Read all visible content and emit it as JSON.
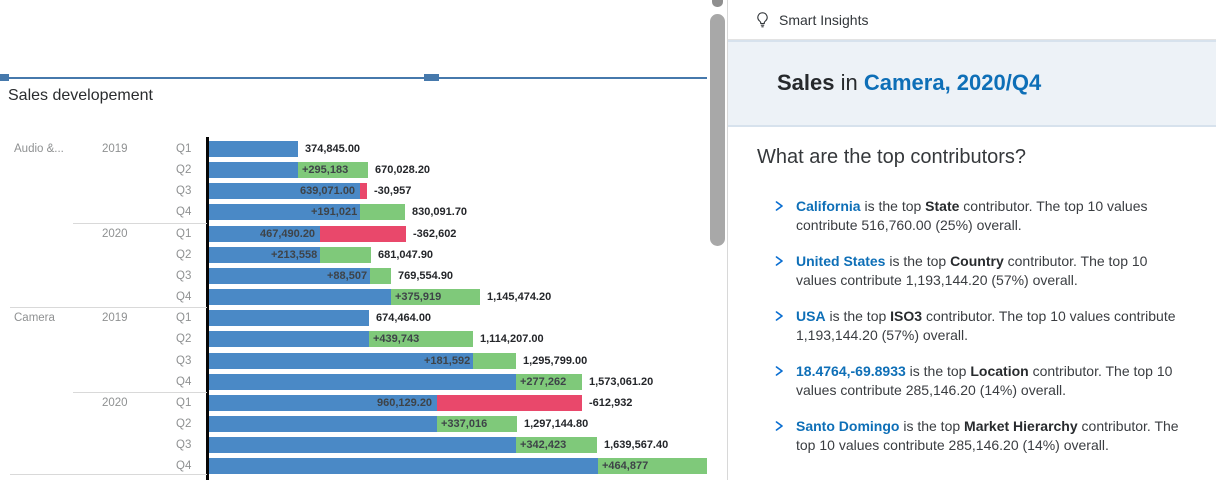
{
  "colors": {
    "bar_blue": "#4A89C6",
    "delta_increase_green": "#7FC97A",
    "delta_decrease_red": "#E9486B",
    "selection_border_blue": "#4679AC",
    "accent_blue": "#0E6FB7",
    "link_blue": "#0A6ED1",
    "context_bar_bg": "#EDF2F7"
  },
  "icons": {
    "panel_header": "lightbulb-icon",
    "item_expand": "chevron-right-icon"
  },
  "chart_data": {
    "type": "bar",
    "subtype": "waterfall-development",
    "orientation": "horizontal",
    "title": "Sales developement",
    "measure": "Sales",
    "legend": "none",
    "grid": false,
    "partial_next_separator": true,
    "rows": [
      {
        "category": "Audio &...",
        "year": "2019",
        "quarter": "Q1",
        "total": 374845.0,
        "delta": null,
        "direction": "none",
        "separator": null,
        "labels": {
          "outside": "374,845.00"
        }
      },
      {
        "quarter": "Q2",
        "total": 670028.2,
        "delta": 295183,
        "direction": "up",
        "separator": null,
        "labels": {
          "delta": "+295,183",
          "outside": "670,028.20"
        }
      },
      {
        "quarter": "Q3",
        "total": 639071.0,
        "delta": -30957,
        "direction": "down",
        "separator": null,
        "labels": {
          "inside": "639,071.00",
          "outside": "-30,957"
        }
      },
      {
        "quarter": "Q4",
        "total": 830091.7,
        "delta": 191021,
        "direction": "up",
        "separator": null,
        "labels": {
          "delta": "+191,021",
          "outside": "830,091.70"
        }
      },
      {
        "year": "2020",
        "quarter": "Q1",
        "total": 467490.2,
        "delta": -362602,
        "direction": "down",
        "separator": "year",
        "labels": {
          "inside": "467,490.20",
          "outside": "-362,602"
        }
      },
      {
        "quarter": "Q2",
        "total": 681047.9,
        "delta": 213558,
        "direction": "up",
        "separator": null,
        "labels": {
          "delta": "+213,558",
          "outside": "681,047.90"
        }
      },
      {
        "quarter": "Q3",
        "total": 769554.9,
        "delta": 88507,
        "direction": "up",
        "separator": null,
        "labels": {
          "delta": "+88,507",
          "outside": "769,554.90"
        }
      },
      {
        "quarter": "Q4",
        "total": 1145474.2,
        "delta": 375919,
        "direction": "up",
        "separator": null,
        "labels": {
          "delta": "+375,919",
          "outside": "1,145,474.20"
        }
      },
      {
        "category": "Camera",
        "year": "2019",
        "quarter": "Q1",
        "total": 674464.0,
        "delta": null,
        "direction": "none",
        "separator": "category",
        "labels": {
          "outside": "674,464.00"
        }
      },
      {
        "quarter": "Q2",
        "total": 1114207.0,
        "delta": 439743,
        "direction": "up",
        "separator": null,
        "labels": {
          "delta": "+439,743",
          "outside": "1,114,207.00"
        }
      },
      {
        "quarter": "Q3",
        "total": 1295799.0,
        "delta": 181592,
        "direction": "up",
        "separator": null,
        "labels": {
          "delta": "+181,592",
          "outside": "1,295,799.00"
        }
      },
      {
        "quarter": "Q4",
        "total": 1573061.2,
        "delta": 277262,
        "direction": "up",
        "separator": null,
        "labels": {
          "delta": "+277,262",
          "outside": "1,573,061.20"
        }
      },
      {
        "year": "2020",
        "quarter": "Q1",
        "total": 960129.2,
        "delta": -612932,
        "direction": "down",
        "separator": "year",
        "labels": {
          "inside": "960,129.20",
          "outside": "-612,932"
        }
      },
      {
        "quarter": "Q2",
        "total": 1297144.8,
        "delta": 337016,
        "direction": "up",
        "separator": null,
        "labels": {
          "delta": "+337,016",
          "outside": "1,297,144.80"
        }
      },
      {
        "quarter": "Q3",
        "total": 1639567.4,
        "delta": 342423,
        "direction": "up",
        "separator": null,
        "labels": {
          "delta": "+342,423",
          "outside": "1,639,567.40"
        }
      },
      {
        "quarter": "Q4",
        "total": 2104444.4,
        "delta": 464877,
        "direction": "up",
        "separator": null,
        "labels": {
          "delta": "+464,877",
          "outside": null
        }
      }
    ]
  },
  "insights_panel": {
    "header": {
      "title": "Smart Insights"
    },
    "context_bar": {
      "measure": "Sales",
      "connector": " in ",
      "context": "Camera, 2020/Q4"
    },
    "question": "What are the top contributors?",
    "items": [
      {
        "entity": "California",
        "prefix": " is the top ",
        "dimension": "State",
        "suffix": " contributor. The top 10 values contribute 516,760.00 (25%) overall."
      },
      {
        "entity": "United States",
        "prefix": " is the top ",
        "dimension": "Country",
        "suffix": " contributor. The top 10 values contribute 1,193,144.20 (57%) overall."
      },
      {
        "entity": "USA",
        "prefix": " is the top ",
        "dimension": "ISO3",
        "suffix": " contributor. The top 10 values contribute 1,193,144.20 (57%) overall."
      },
      {
        "entity": "18.4764,-69.8933",
        "prefix": " is the top ",
        "dimension": "Location",
        "suffix": " contributor. The top 10 values contribute 285,146.20 (14%) overall."
      },
      {
        "entity": "Santo Domingo",
        "prefix": " is the top ",
        "dimension": "Market Hierarchy",
        "suffix": " contributor. The top 10 values contribute 285,146.20 (14%) overall."
      }
    ]
  }
}
